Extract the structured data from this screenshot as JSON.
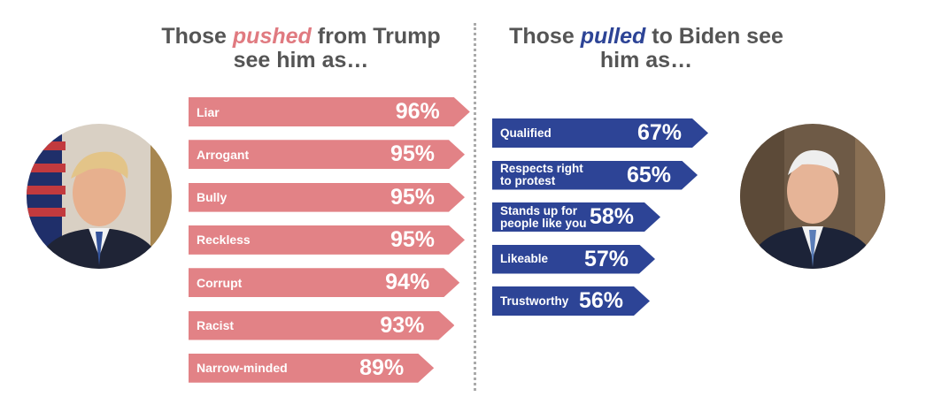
{
  "colors": {
    "trump_bar": "#e28286",
    "biden_bar": "#2d4496",
    "title_gray": "#555555",
    "pushed_accent": "#e07a80",
    "pulled_accent": "#2d4496"
  },
  "icons": {
    "trump_portrait": "portrait-photo-icon",
    "biden_portrait": "portrait-photo-icon"
  },
  "chart_data": [
    {
      "type": "bar",
      "title_parts": [
        "Those ",
        "pushed",
        " from Trump see him as…"
      ],
      "categories": [
        "Liar",
        "Arrogant",
        "Bully",
        "Reckless",
        "Corrupt",
        "Racist",
        "Narrow-minded"
      ],
      "values": [
        96,
        95,
        95,
        95,
        94,
        93,
        89
      ],
      "value_labels": [
        "96%",
        "95%",
        "95%",
        "95%",
        "94%",
        "93%",
        "89%"
      ],
      "orientation": "horizontal",
      "unit": "%"
    },
    {
      "type": "bar",
      "title_parts": [
        "Those ",
        "pulled",
        " to Biden see him as…"
      ],
      "categories": [
        "Qualified",
        "Respects right\nto protest",
        "Stands up for\npeople like you",
        "Likeable",
        "Trustworthy"
      ],
      "values": [
        67,
        65,
        58,
        57,
        56
      ],
      "value_labels": [
        "67%",
        "65%",
        "58%",
        "57%",
        "56%"
      ],
      "orientation": "horizontal",
      "unit": "%"
    }
  ]
}
